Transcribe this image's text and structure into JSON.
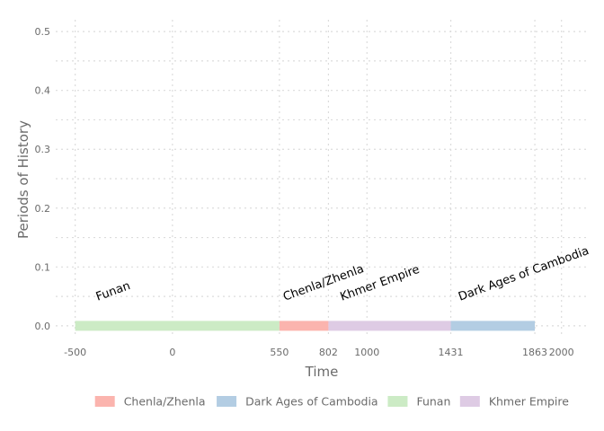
{
  "chart_data": {
    "type": "timeline",
    "xlabel": "Time",
    "ylabel": "Periods of History",
    "xlim": [
      -600,
      2140
    ],
    "ylim": [
      -0.02,
      0.52
    ],
    "x_ticks": [
      {
        "value": -500,
        "label": "-500"
      },
      {
        "value": 0,
        "label": "0"
      },
      {
        "value": 550,
        "label": "550"
      },
      {
        "value": 802,
        "label": "802"
      },
      {
        "value": 1000,
        "label": "1000"
      },
      {
        "value": 1431,
        "label": "1431"
      },
      {
        "value": 1863,
        "label": "1863"
      },
      {
        "value": 2000,
        "label": "2000"
      }
    ],
    "y_ticks": [
      {
        "value": 0.0,
        "label": "0.0"
      },
      {
        "value": 0.1,
        "label": "0.1"
      },
      {
        "value": 0.2,
        "label": "0.2"
      },
      {
        "value": 0.3,
        "label": "0.3"
      },
      {
        "value": 0.4,
        "label": "0.4"
      },
      {
        "value": 0.5,
        "label": "0.5"
      }
    ],
    "periods": [
      {
        "name": "Funan",
        "start": -500,
        "end": 550,
        "label": "Funan",
        "color": "#CCEBC5"
      },
      {
        "name": "Chenla/Zhenla",
        "start": 550,
        "end": 802,
        "label": "Chenla/Zhenla",
        "color": "#FBB4AE"
      },
      {
        "name": "Khmer Empire",
        "start": 802,
        "end": 1431,
        "label": "Khmer Empire",
        "color": "#DECBE4"
      },
      {
        "name": "Dark Ages of Cambodia",
        "start": 1431,
        "end": 1863,
        "label": "Dark Ages of Cambodia",
        "color": "#B3CDE3"
      }
    ],
    "legend": {
      "position": "bottom",
      "items": [
        {
          "label": "Chenla/Zhenla",
          "color": "#FBB4AE"
        },
        {
          "label": "Dark Ages of Cambodia",
          "color": "#B3CDE3"
        },
        {
          "label": "Funan",
          "color": "#CCEBC5"
        },
        {
          "label": "Khmer Empire",
          "color": "#DECBE4"
        }
      ]
    },
    "grid": true
  }
}
